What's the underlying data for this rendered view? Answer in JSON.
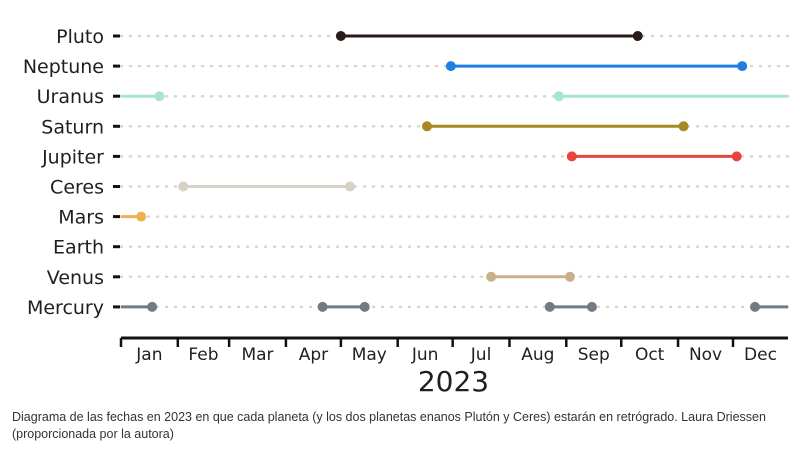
{
  "chart_data": {
    "type": "range-dot",
    "title": "",
    "xlabel": "2023",
    "ylabel": "",
    "months": [
      "Jan",
      "Feb",
      "Mar",
      "Apr",
      "May",
      "Jun",
      "Jul",
      "Aug",
      "Sep",
      "Oct",
      "Nov",
      "Dec"
    ],
    "xlim": [
      "2023-01-01",
      "2023-12-31"
    ],
    "grid": "dotted horizontal",
    "series": [
      {
        "name": "Pluto",
        "color": "#2a1a1a",
        "segments": [
          [
            "2023-05-01",
            "2023-10-10"
          ]
        ]
      },
      {
        "name": "Neptune",
        "color": "#1e7fe0",
        "segments": [
          [
            "2023-06-30",
            "2023-12-06"
          ]
        ]
      },
      {
        "name": "Uranus",
        "color": "#a8e3d6",
        "segments": [
          [
            "2023-01-01",
            "2023-01-22"
          ],
          [
            "2023-08-28",
            "2023-12-31"
          ]
        ]
      },
      {
        "name": "Saturn",
        "color": "#a58a24",
        "segments": [
          [
            "2023-06-17",
            "2023-11-04"
          ]
        ]
      },
      {
        "name": "Jupiter",
        "color": "#e8453c",
        "segments": [
          [
            "2023-09-04",
            "2023-12-03"
          ]
        ]
      },
      {
        "name": "Ceres",
        "color": "#d8d1c5",
        "segments": [
          [
            "2023-02-04",
            "2023-05-06"
          ]
        ]
      },
      {
        "name": "Mars",
        "color": "#f0b050",
        "segments": [
          [
            "2023-01-01",
            "2023-01-12"
          ]
        ]
      },
      {
        "name": "Earth",
        "color": "#888888",
        "segments": []
      },
      {
        "name": "Venus",
        "color": "#c8b08a",
        "segments": [
          [
            "2023-07-22",
            "2023-09-03"
          ]
        ]
      },
      {
        "name": "Mercury",
        "color": "#727a86",
        "segments": [
          [
            "2023-01-01",
            "2023-01-18"
          ],
          [
            "2023-04-21",
            "2023-05-14"
          ],
          [
            "2023-08-23",
            "2023-09-15"
          ],
          [
            "2023-12-13",
            "2023-12-31"
          ]
        ]
      }
    ]
  },
  "caption": {
    "text": "Diagrama de las fechas en 2023 en que cada planeta (y los dos planetas enanos Plutón y Ceres) estarán en retrógrado. Laura Driessen (proporcionada por la autora)"
  }
}
